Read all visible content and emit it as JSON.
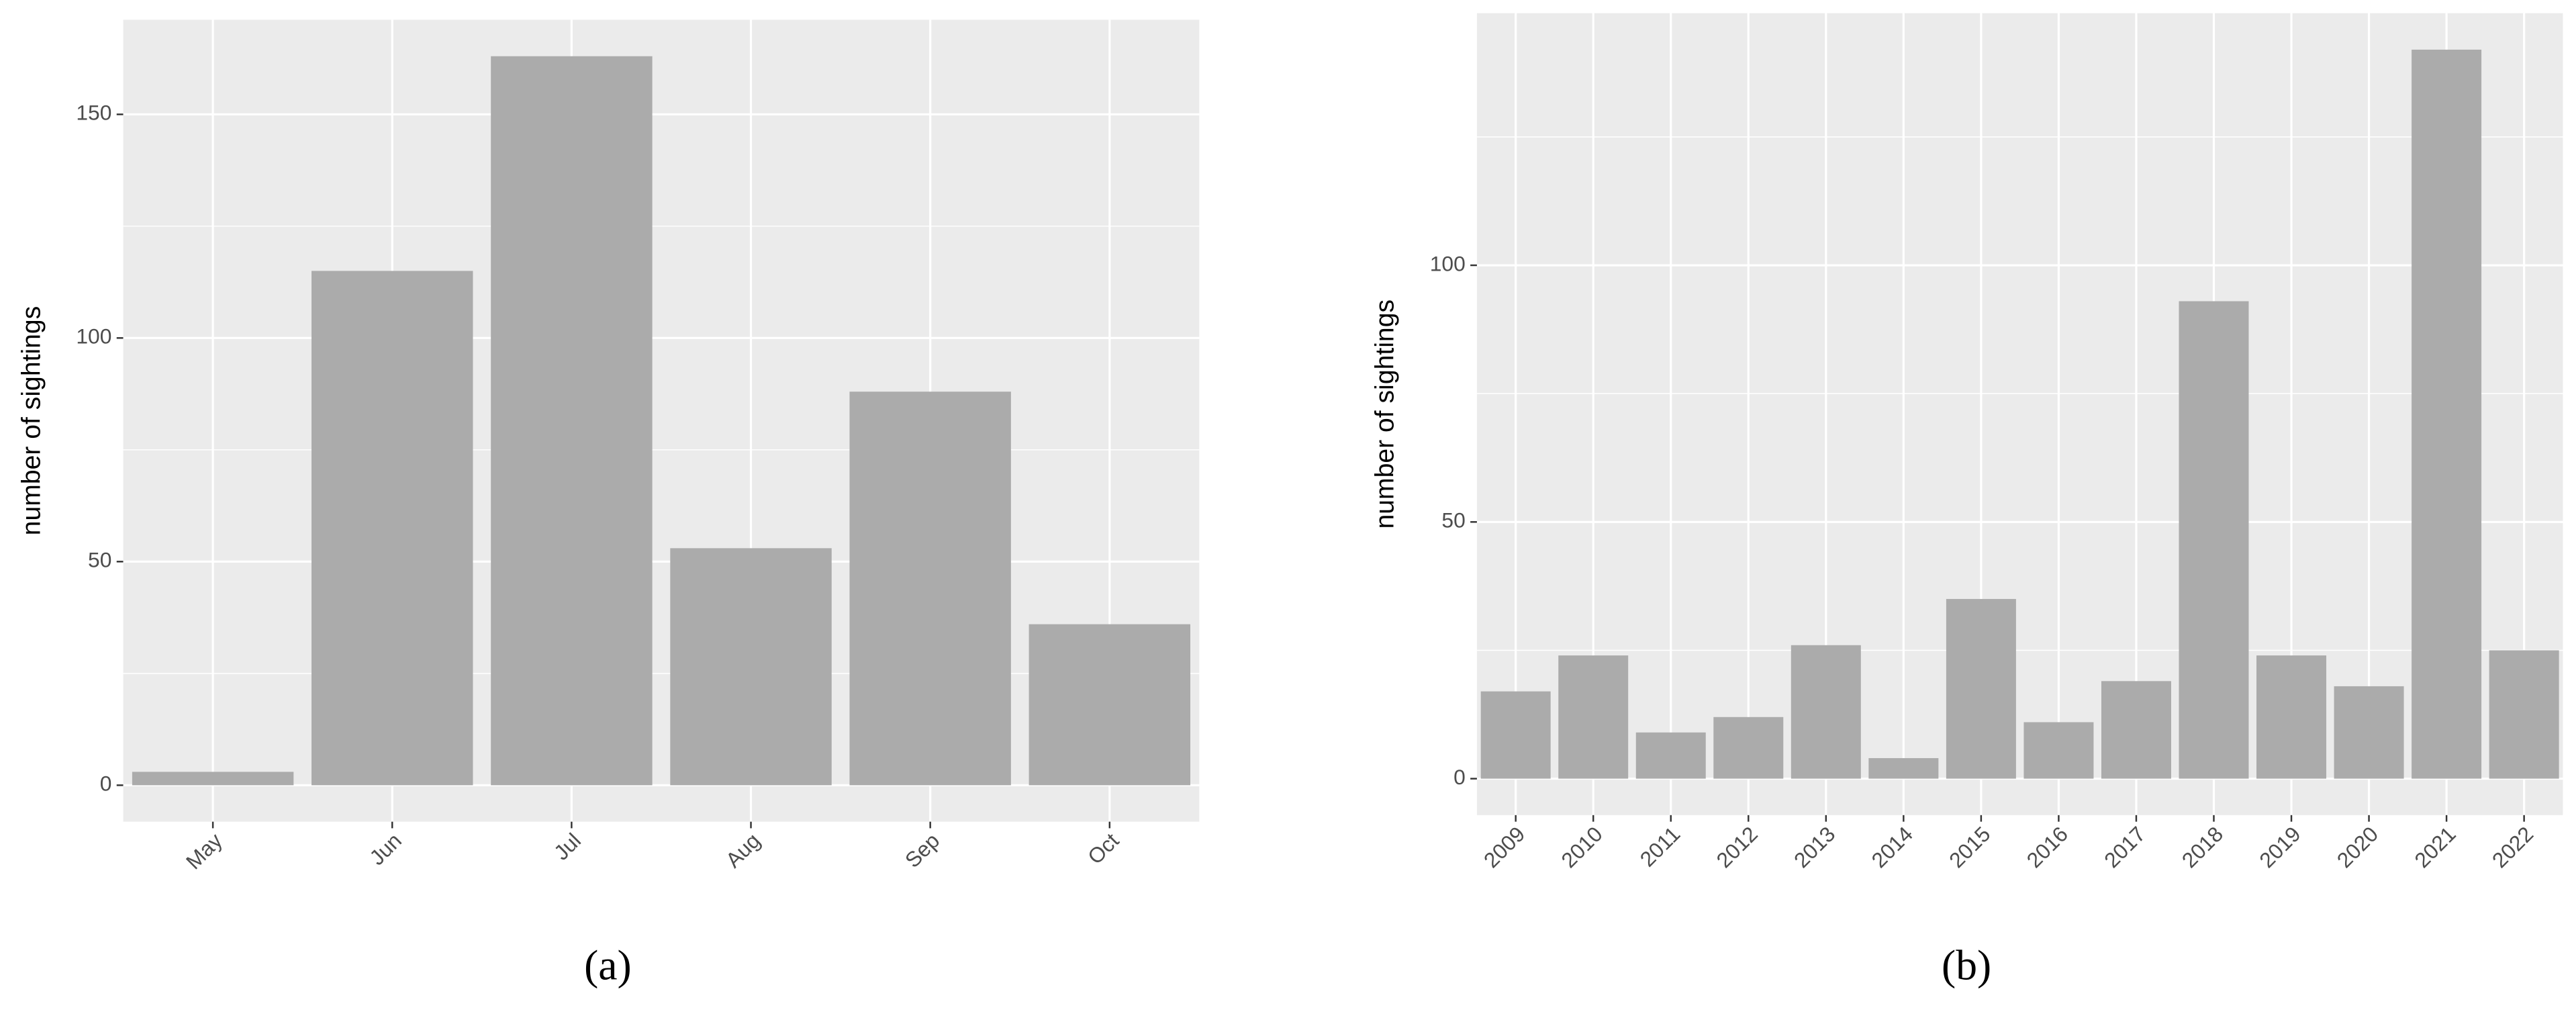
{
  "chart_data": [
    {
      "type": "bar",
      "caption": "(a)",
      "y_label": "number of sightings",
      "categories": [
        "May",
        "Jun",
        "Jul",
        "Aug",
        "Sep",
        "Oct"
      ],
      "values": [
        3,
        115,
        163,
        53,
        88,
        36
      ],
      "color": "#ababab",
      "ylim": [
        -8.15,
        171.15
      ],
      "yticks": [
        0,
        50,
        100,
        150
      ],
      "grid": true
    },
    {
      "type": "bar",
      "caption": "(b)",
      "y_label": "number of sightings",
      "categories": [
        "2009",
        "2010",
        "2011",
        "2012",
        "2013",
        "2014",
        "2015",
        "2016",
        "2017",
        "2018",
        "2019",
        "2020",
        "2021",
        "2022"
      ],
      "values": [
        17,
        24,
        9,
        12,
        26,
        4,
        35,
        11,
        19,
        93,
        24,
        18,
        142,
        25
      ],
      "color": "#ababab",
      "ylim": [
        -7.1,
        149.1
      ],
      "yticks": [
        0,
        50,
        100
      ],
      "grid": true
    }
  ]
}
